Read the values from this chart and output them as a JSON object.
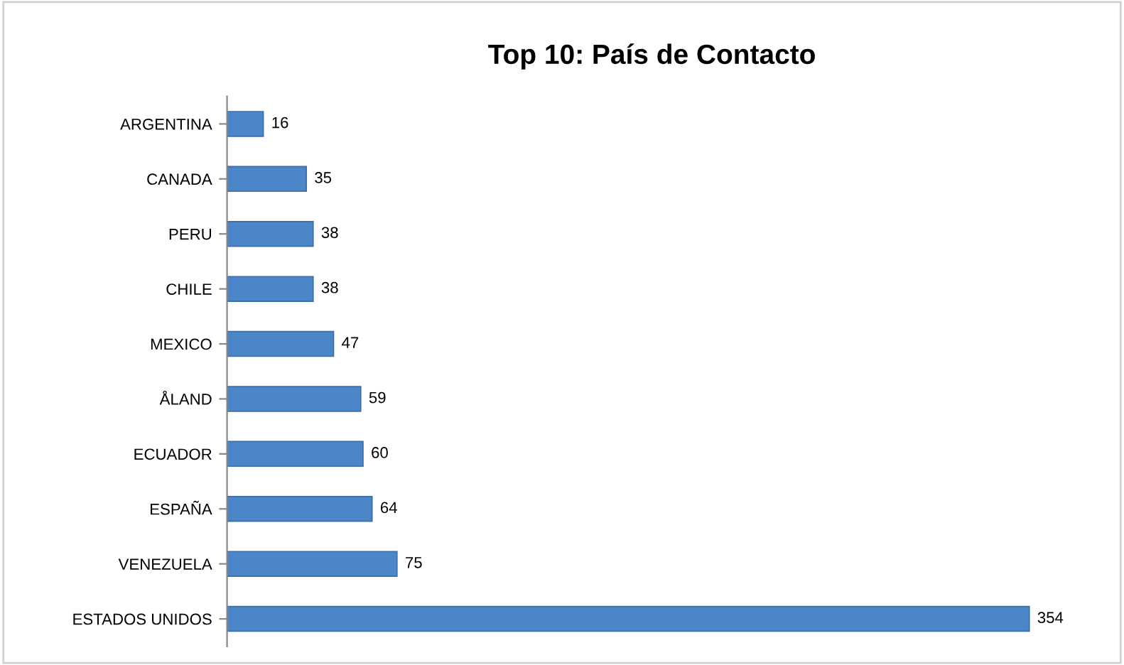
{
  "chart_data": {
    "type": "bar",
    "orientation": "horizontal",
    "title": "Top 10: País de Contacto",
    "categories": [
      "ARGENTINA",
      "CANADA",
      "PERU",
      "CHILE",
      "MEXICO",
      "ÅLAND",
      "ECUADOR",
      "ESPAÑA",
      "VENEZUELA",
      "ESTADOS UNIDOS"
    ],
    "values": [
      16,
      35,
      38,
      38,
      47,
      59,
      60,
      64,
      75,
      354
    ],
    "color": "#4a86c8",
    "data_labels": true,
    "grid": false,
    "legend": false
  }
}
